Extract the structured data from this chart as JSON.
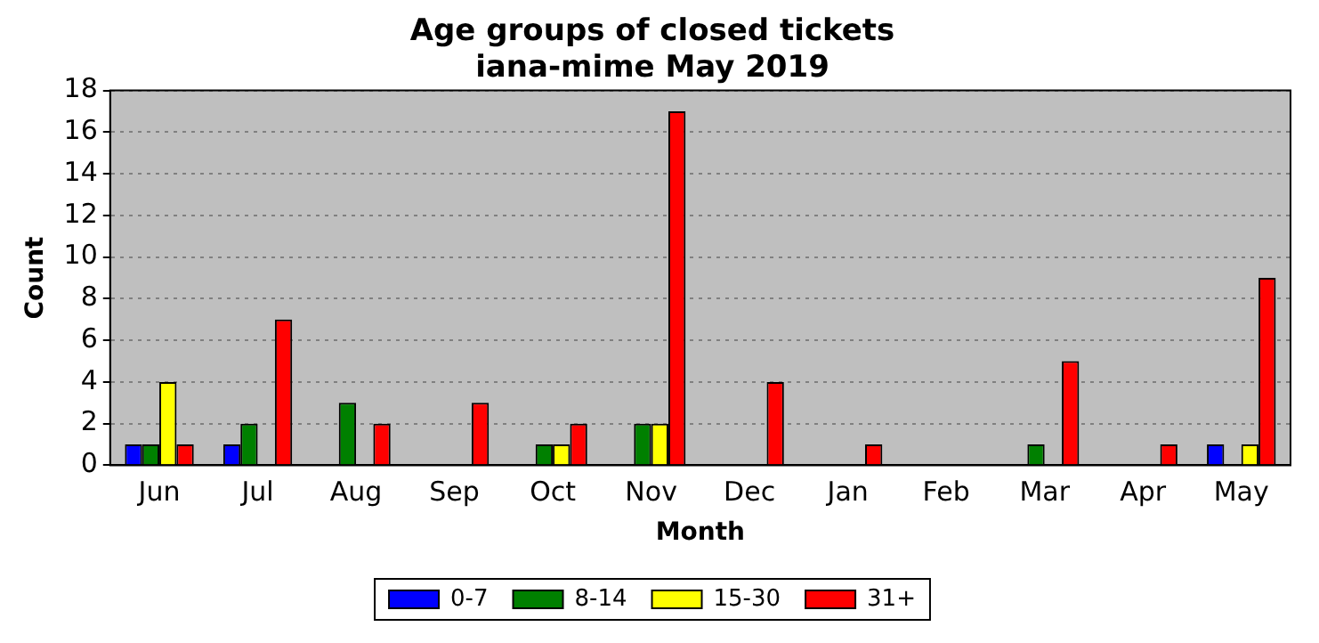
{
  "chart_data": {
    "type": "bar",
    "title": "Age groups of closed tickets",
    "subtitle": "iana-mime May 2019",
    "xlabel": "Month",
    "ylabel": "Count",
    "categories": [
      "Jun",
      "Jul",
      "Aug",
      "Sep",
      "Oct",
      "Nov",
      "Dec",
      "Jan",
      "Feb",
      "Mar",
      "Apr",
      "May"
    ],
    "series": [
      {
        "name": "0-7",
        "color": "#0000ff",
        "values": [
          1,
          1,
          0,
          0,
          0,
          0,
          0,
          0,
          0,
          0,
          0,
          1
        ]
      },
      {
        "name": "8-14",
        "color": "#008000",
        "values": [
          1,
          2,
          3,
          0,
          1,
          2,
          0,
          0,
          0,
          1,
          0,
          0
        ]
      },
      {
        "name": "15-30",
        "color": "#ffff00",
        "values": [
          4,
          0,
          0,
          0,
          1,
          2,
          0,
          0,
          0,
          0,
          0,
          1
        ]
      },
      {
        "name": "31+",
        "color": "#ff0000",
        "values": [
          1,
          7,
          2,
          3,
          2,
          17,
          4,
          1,
          0,
          5,
          1,
          9
        ]
      }
    ],
    "ylim": [
      0,
      18
    ],
    "yticks": [
      0,
      2,
      4,
      6,
      8,
      10,
      12,
      14,
      16,
      18
    ],
    "grid": "y",
    "legend": "bottom"
  }
}
